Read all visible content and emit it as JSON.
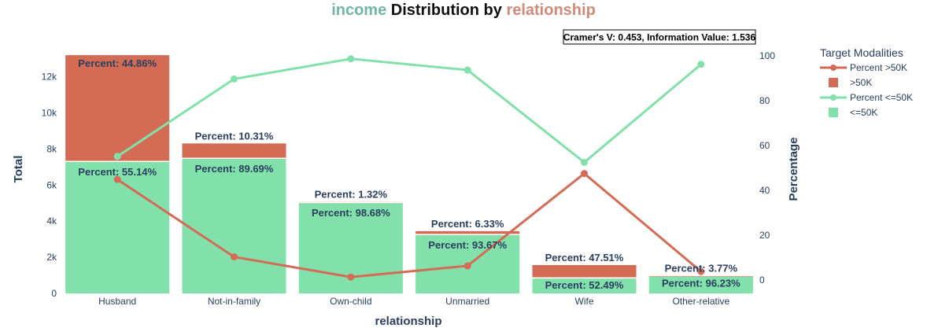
{
  "title": {
    "part1": "income",
    "part2": " Distribution by ",
    "part3": "relationship",
    "color1": "#6fb8a5",
    "color2": "#111111",
    "color3": "#d28a7a"
  },
  "annotation": "Cramer's V: 0.453, Information Value: 1.536",
  "legend": {
    "title": "Target Modalities",
    "items": [
      {
        "label": "Percent  >50K",
        "kind": "line",
        "color": "#d46b55"
      },
      {
        "label": "  >50K",
        "kind": "bar",
        "color": "#d46b55"
      },
      {
        "label": "Percent  <=50K",
        "kind": "line",
        "color": "#82e0aa"
      },
      {
        "label": "  <=50K",
        "kind": "bar",
        "color": "#82e0aa"
      }
    ]
  },
  "chart_data": {
    "type": "bar",
    "stacked": true,
    "xlabel": "relationship",
    "ylabel": "Total",
    "y2label": "Percentage",
    "categories": [
      "Husband",
      "Not-in-family",
      "Own-child",
      "Unmarried",
      "Wife",
      "Other-relative"
    ],
    "ylim": [
      0,
      13200
    ],
    "yticks": [
      0,
      2000,
      4000,
      6000,
      8000,
      10000,
      12000
    ],
    "ytick_labels": [
      "0",
      "2k",
      "4k",
      "6k",
      "8k",
      "10k",
      "12k"
    ],
    "y2lim": [
      -5,
      104
    ],
    "y2ticks": [
      0,
      20,
      40,
      60,
      80,
      100
    ],
    "series": [
      {
        "name": "<=50K",
        "color": "#82e0aa",
        "values": [
          7275,
          7449,
          5001,
          3228,
          823,
          944
        ],
        "percent_labels": [
          "Percent: 55.14%",
          "Percent: 89.69%",
          "Percent: 98.68%",
          "Percent: 93.67%",
          "Percent: 52.49%",
          "Percent: 96.23%"
        ]
      },
      {
        "name": ">50K",
        "color": "#d46b55",
        "values": [
          5918,
          856,
          67,
          218,
          745,
          37
        ],
        "percent_labels": [
          "Percent: 44.86%",
          "Percent: 10.31%",
          "Percent: 1.32%",
          "Percent: 6.33%",
          "Percent: 47.51%",
          "Percent: 3.77%"
        ]
      }
    ],
    "lines": [
      {
        "name": "Percent  >50K",
        "color": "#d46b55",
        "values": [
          44.86,
          10.31,
          1.32,
          6.33,
          47.51,
          3.77
        ]
      },
      {
        "name": "Percent  <=50K",
        "color": "#82e0aa",
        "values": [
          55.14,
          89.69,
          98.68,
          93.67,
          52.49,
          96.23
        ]
      }
    ],
    "grid": false,
    "legend_position": "right"
  }
}
